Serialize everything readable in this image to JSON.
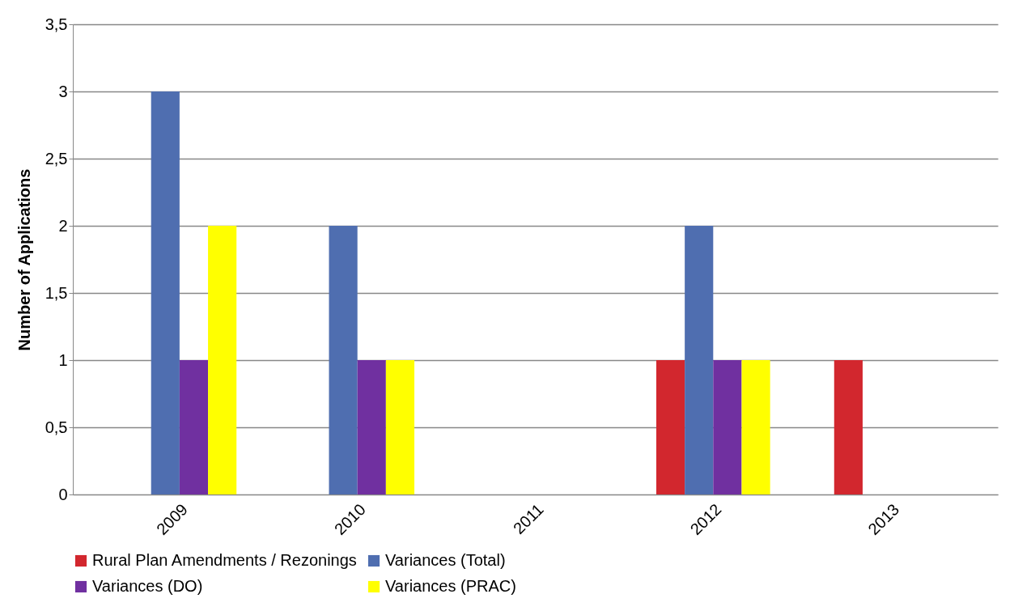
{
  "chart_data": {
    "type": "bar",
    "ylabel": "Number of Applications",
    "categories": [
      "2009",
      "2010",
      "2011",
      "2012",
      "2013"
    ],
    "series": [
      {
        "name": "Rural Plan Amendments / Rezonings",
        "color": "#d2272e",
        "values": [
          0,
          0,
          0,
          1,
          1
        ]
      },
      {
        "name": "Variances (Total)",
        "color": "#4f6eb0",
        "values": [
          3,
          2,
          0,
          2,
          0
        ]
      },
      {
        "name": "Variances (DO)",
        "color": "#7030a0",
        "values": [
          1,
          1,
          0,
          1,
          0
        ]
      },
      {
        "name": "Variances (PRAC)",
        "color": "#ffff00",
        "values": [
          2,
          1,
          0,
          1,
          0
        ]
      }
    ],
    "ylim": [
      0,
      3.5
    ],
    "yticks": [
      0,
      {
        "value": 0.5,
        "label": "0,5"
      },
      1,
      {
        "value": 1.5,
        "label": "1,5"
      },
      2,
      {
        "value": 2.5,
        "label": "2,5"
      },
      3,
      {
        "value": 3.5,
        "label": "3,5"
      }
    ],
    "grid": "y",
    "legend": "bottom"
  }
}
